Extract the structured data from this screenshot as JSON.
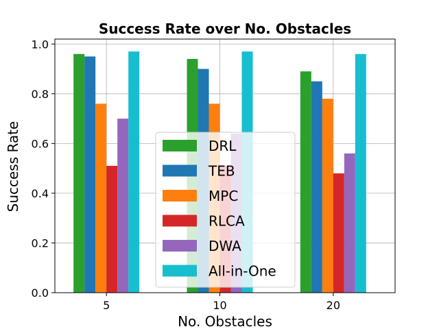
{
  "chart_data": {
    "type": "bar",
    "title": "Success Rate over No. Obstacles",
    "xlabel": "No. Obstacles",
    "ylabel": "Success Rate",
    "categories": [
      "5",
      "10",
      "20"
    ],
    "ylim": [
      0,
      1.02
    ],
    "yticks": [
      "0.0",
      "0.2",
      "0.4",
      "0.6",
      "0.8",
      "1.0"
    ],
    "grid": true,
    "legend_position": "lower-center",
    "series": [
      {
        "name": "DRL",
        "color": "#2ca02c",
        "values": [
          0.96,
          0.94,
          0.89
        ]
      },
      {
        "name": "TEB",
        "color": "#1f77b4",
        "values": [
          0.95,
          0.9,
          0.85
        ]
      },
      {
        "name": "MPC",
        "color": "#ff7f0e",
        "values": [
          0.76,
          0.76,
          0.78
        ]
      },
      {
        "name": "RLCA",
        "color": "#d62728",
        "values": [
          0.51,
          0.51,
          0.48
        ]
      },
      {
        "name": "DWA",
        "color": "#9467bd",
        "values": [
          0.7,
          0.64,
          0.56
        ]
      },
      {
        "name": "All-in-One",
        "color": "#17becf",
        "values": [
          0.97,
          0.97,
          0.96
        ]
      }
    ]
  }
}
